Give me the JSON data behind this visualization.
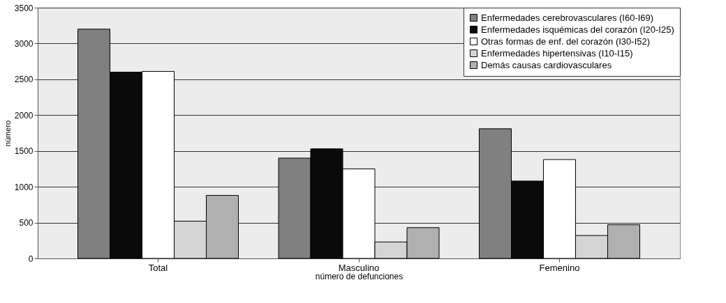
{
  "chart_data": {
    "type": "bar",
    "xlabel": "número de defunciones",
    "ylabel": "número",
    "categories": [
      "Total",
      "Masculino",
      "Femenino"
    ],
    "series": [
      {
        "name": "Enfermedades cerebrovasculares (I60-I69)",
        "color": "#808080",
        "values": [
          3200,
          1400,
          1810
        ]
      },
      {
        "name": "Enfermedades isquémicas del corazón (I20-I25)",
        "color": "#0a0a0a",
        "values": [
          2600,
          1530,
          1080
        ]
      },
      {
        "name": "Otras formas de enf. del corazón (I30-I52)",
        "color": "#ffffff",
        "values": [
          2610,
          1250,
          1380
        ]
      },
      {
        "name": "Enfermedades hipertensivas (I10-I15)",
        "color": "#d4d4d4",
        "values": [
          520,
          230,
          320
        ]
      },
      {
        "name": "Demás causas cardiovasculares",
        "color": "#b0b0b0",
        "values": [
          880,
          430,
          470
        ]
      }
    ],
    "ylim": [
      0,
      3500
    ],
    "yticks": [
      0,
      500,
      1000,
      1500,
      2000,
      2500,
      3000,
      3500
    ],
    "grid": "y",
    "legend": "top right"
  }
}
